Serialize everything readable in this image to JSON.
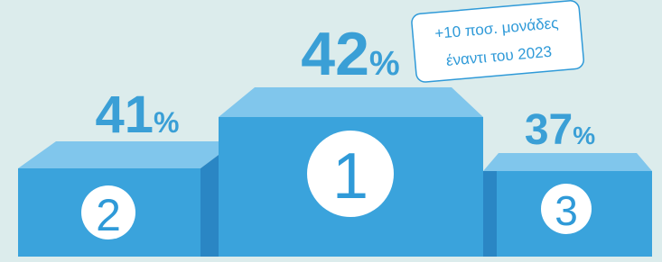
{
  "podium": [
    {
      "rank": "1",
      "value": 42,
      "unit": "%"
    },
    {
      "rank": "2",
      "value": 41,
      "unit": "%"
    },
    {
      "rank": "3",
      "value": 37,
      "unit": "%"
    }
  ],
  "callout": {
    "line1": "+10 ποσ. μονάδες",
    "line2": "έναντι του 2023"
  }
}
